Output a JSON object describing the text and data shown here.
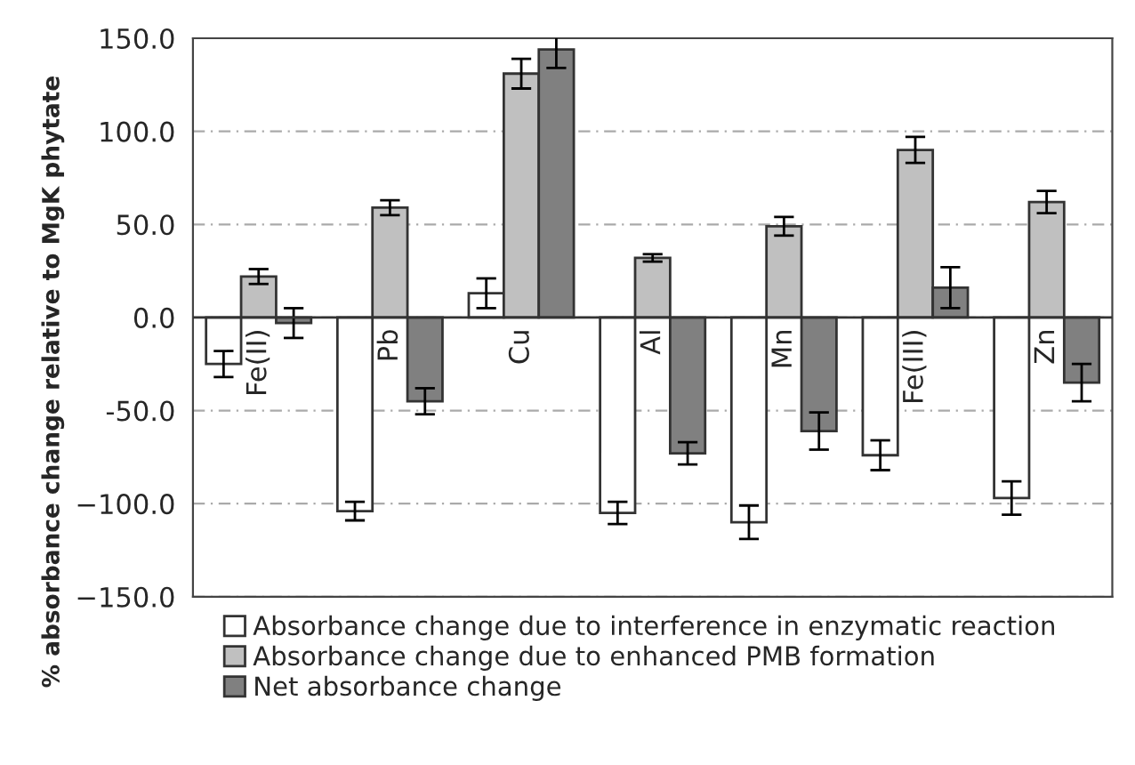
{
  "chart_data": {
    "type": "bar",
    "ylabel": "% absorbance change relative to MgK phytate",
    "categories": [
      "Fe(II)",
      "Pb",
      "Cu",
      "Al",
      "Mn",
      "Fe(III)",
      "Zn"
    ],
    "series": [
      {
        "name": "Absorbance change due to interference in enzymatic reaction",
        "color": "#ffffff",
        "values": [
          -25,
          -104,
          13,
          -105,
          -110,
          -74,
          -97
        ],
        "errors": [
          7,
          5,
          8,
          6,
          9,
          8,
          9
        ]
      },
      {
        "name": "Absorbance change due to enhanced PMB formation",
        "color": "#c0c0c0",
        "values": [
          22,
          59,
          131,
          32,
          49,
          90,
          62
        ],
        "errors": [
          4,
          4,
          8,
          2,
          5,
          7,
          6
        ]
      },
      {
        "name": "Net absorbance change",
        "color": "#808080",
        "values": [
          -3,
          -45,
          144,
          -73,
          -61,
          16,
          -35
        ],
        "errors": [
          8,
          7,
          10,
          6,
          10,
          11,
          10
        ]
      }
    ],
    "ylim": [
      -150,
      150
    ],
    "yticks": [
      {
        "value": -150,
        "label": "−150.0"
      },
      {
        "value": -100,
        "label": "−100.0"
      },
      {
        "value": -50,
        "label": "-50.0"
      },
      {
        "value": 0,
        "label": "0.0"
      },
      {
        "value": 50,
        "label": "50.0"
      },
      {
        "value": 100,
        "label": "100.0"
      },
      {
        "value": 150,
        "label": "150.0"
      }
    ],
    "grid": "y",
    "legend": "bottom"
  }
}
